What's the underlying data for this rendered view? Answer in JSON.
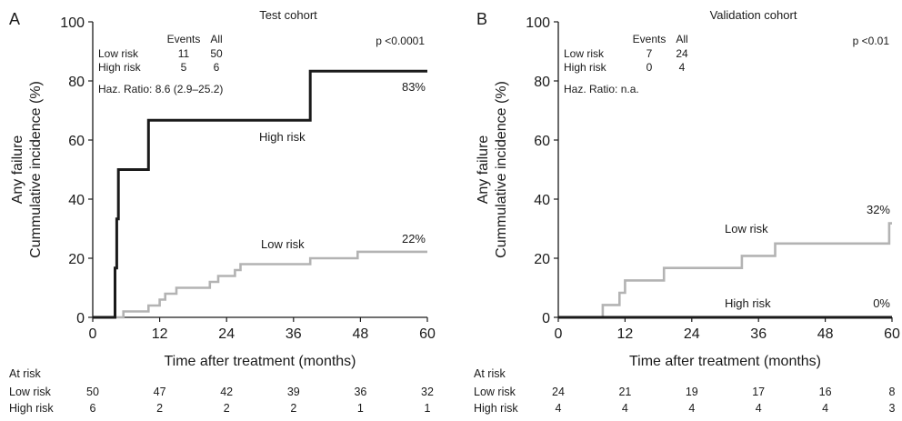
{
  "chart_data": [
    {
      "panel": "A",
      "type": "line",
      "title": "Test cohort",
      "xlabel": "Time after treatment (months)",
      "ylabel_lines": [
        "Any failure",
        "Cummulative incidence (%)"
      ],
      "xlim": [
        0,
        60
      ],
      "ylim": [
        0,
        100
      ],
      "xticks": [
        0,
        12,
        24,
        36,
        48,
        60
      ],
      "yticks": [
        0,
        20,
        40,
        60,
        80,
        100
      ],
      "grid": false,
      "pvalue": "p <0.0001",
      "legend_header": [
        "Events",
        "All"
      ],
      "legend_rows": [
        {
          "label": "Low risk",
          "events": "11",
          "all": "50"
        },
        {
          "label": "High risk",
          "events": "5",
          "all": "6"
        }
      ],
      "hazard_ratio": "Haz. Ratio: 8.6 (2.9–25.2)",
      "series": [
        {
          "name": "High risk",
          "color": "#1a1a1a",
          "end_label": "83%",
          "steps": [
            [
              0,
              0
            ],
            [
              4,
              0
            ],
            [
              4,
              16.7
            ],
            [
              4.3,
              16.7
            ],
            [
              4.3,
              33.3
            ],
            [
              4.6,
              33.3
            ],
            [
              4.6,
              50
            ],
            [
              10,
              50
            ],
            [
              10,
              66.7
            ],
            [
              39,
              66.7
            ],
            [
              39,
              83.3
            ],
            [
              60,
              83.3
            ]
          ]
        },
        {
          "name": "Low risk",
          "color": "#b3b3b3",
          "end_label": "22%",
          "steps": [
            [
              0,
              0
            ],
            [
              5.5,
              0
            ],
            [
              5.5,
              2
            ],
            [
              10,
              2
            ],
            [
              10,
              4
            ],
            [
              12,
              4
            ],
            [
              12,
              6
            ],
            [
              13,
              6
            ],
            [
              13,
              8
            ],
            [
              15,
              8
            ],
            [
              15,
              10
            ],
            [
              21,
              10
            ],
            [
              21,
              12
            ],
            [
              22.5,
              12
            ],
            [
              22.5,
              14
            ],
            [
              25.5,
              14
            ],
            [
              25.5,
              16
            ],
            [
              26.5,
              16
            ],
            [
              26.5,
              18
            ],
            [
              39,
              18
            ],
            [
              39,
              20
            ],
            [
              47.5,
              20
            ],
            [
              47.5,
              22.2
            ],
            [
              60,
              22.2
            ]
          ]
        }
      ],
      "at_risk": {
        "header": "At risk",
        "rows": [
          {
            "label": "Low risk",
            "values": [
              "50",
              "47",
              "42",
              "39",
              "36",
              "32"
            ]
          },
          {
            "label": "High risk",
            "values": [
              "6",
              "2",
              "2",
              "2",
              "1",
              "1"
            ]
          }
        ]
      }
    },
    {
      "panel": "B",
      "type": "line",
      "title": "Validation cohort",
      "xlabel": "Time after treatment (months)",
      "ylabel_lines": [
        "Any failure",
        "Cummulative incidence (%)"
      ],
      "xlim": [
        0,
        60
      ],
      "ylim": [
        0,
        100
      ],
      "xticks": [
        0,
        12,
        24,
        36,
        48,
        60
      ],
      "yticks": [
        0,
        20,
        40,
        60,
        80,
        100
      ],
      "grid": false,
      "pvalue": "p <0.01",
      "legend_header": [
        "Events",
        "All"
      ],
      "legend_rows": [
        {
          "label": "Low risk",
          "events": "7",
          "all": "24"
        },
        {
          "label": "High risk",
          "events": "0",
          "all": "4"
        }
      ],
      "hazard_ratio": "Haz. Ratio: n.a.",
      "series": [
        {
          "name": "High risk",
          "color": "#1a1a1a",
          "end_label": "0%",
          "steps": [
            [
              0,
              0
            ],
            [
              60,
              0
            ]
          ]
        },
        {
          "name": "Low risk",
          "color": "#b3b3b3",
          "end_label": "32%",
          "steps": [
            [
              0,
              0
            ],
            [
              8,
              0
            ],
            [
              8,
              4.2
            ],
            [
              11,
              4.2
            ],
            [
              11,
              8.3
            ],
            [
              12,
              8.3
            ],
            [
              12,
              12.5
            ],
            [
              19,
              12.5
            ],
            [
              19,
              16.7
            ],
            [
              33,
              16.7
            ],
            [
              33,
              20.8
            ],
            [
              39,
              20.8
            ],
            [
              39,
              25
            ],
            [
              59.5,
              25
            ],
            [
              59.5,
              31.8
            ],
            [
              60,
              31.8
            ]
          ]
        }
      ],
      "at_risk": {
        "header": "At risk",
        "rows": [
          {
            "label": "Low risk",
            "values": [
              "24",
              "21",
              "19",
              "17",
              "16",
              "8"
            ]
          },
          {
            "label": "High risk",
            "values": [
              "4",
              "4",
              "4",
              "4",
              "4",
              "3"
            ]
          }
        ]
      }
    }
  ]
}
